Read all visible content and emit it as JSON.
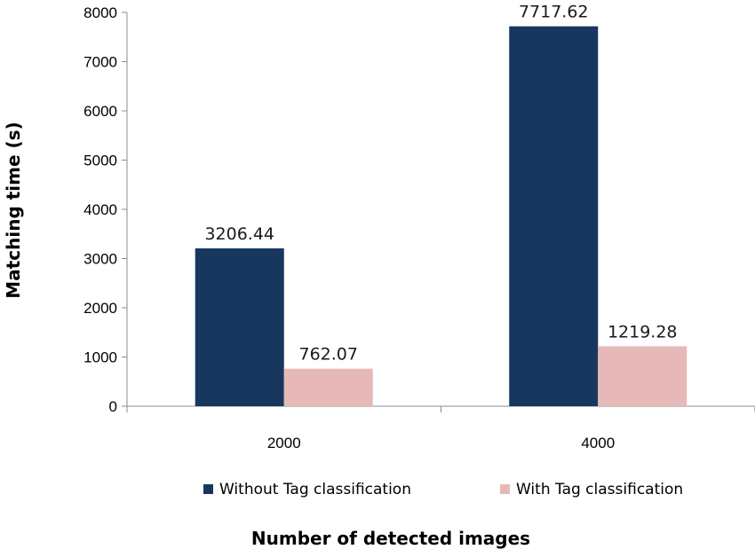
{
  "chart_data": {
    "type": "bar",
    "categories": [
      "2000",
      "4000"
    ],
    "series": [
      {
        "name": "Without Tag classification",
        "values": [
          3206.44,
          7717.62
        ],
        "color": "#17375e"
      },
      {
        "name": "With Tag classification",
        "values": [
          762.07,
          1219.28
        ],
        "color": "#e6b9b8"
      }
    ],
    "data_labels": [
      [
        "3206.44",
        "7717.62"
      ],
      [
        "762.07",
        "1219.28"
      ]
    ],
    "title": "",
    "xlabel": "Number of detected images",
    "ylabel": "Matching time (s)",
    "ylim": [
      0,
      8000
    ],
    "yticks": [
      0,
      1000,
      2000,
      3000,
      4000,
      5000,
      6000,
      7000,
      8000
    ],
    "grid": false,
    "legend_position": "bottom"
  }
}
